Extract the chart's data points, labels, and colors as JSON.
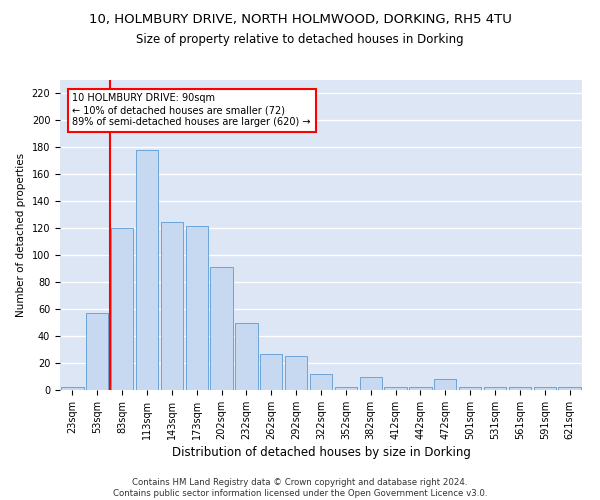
{
  "title1": "10, HOLMBURY DRIVE, NORTH HOLMWOOD, DORKING, RH5 4TU",
  "title2": "Size of property relative to detached houses in Dorking",
  "xlabel": "Distribution of detached houses by size in Dorking",
  "ylabel": "Number of detached properties",
  "categories": [
    "23sqm",
    "53sqm",
    "83sqm",
    "113sqm",
    "143sqm",
    "173sqm",
    "202sqm",
    "232sqm",
    "262sqm",
    "292sqm",
    "322sqm",
    "352sqm",
    "382sqm",
    "412sqm",
    "442sqm",
    "472sqm",
    "501sqm",
    "531sqm",
    "561sqm",
    "591sqm",
    "621sqm"
  ],
  "values": [
    2,
    57,
    120,
    178,
    125,
    122,
    91,
    50,
    27,
    25,
    12,
    2,
    10,
    2,
    2,
    8,
    2,
    2,
    2,
    2,
    2
  ],
  "bar_color": "#c6d9f0",
  "bar_edge_color": "#5b9bd5",
  "background_color": "#dce6f5",
  "grid_color": "#ffffff",
  "annotation_text": "10 HOLMBURY DRIVE: 90sqm\n← 10% of detached houses are smaller (72)\n89% of semi-detached houses are larger (620) →",
  "annotation_box_color": "white",
  "annotation_box_edge": "red",
  "vline_color": "red",
  "vline_x_index": 2,
  "ylim": [
    0,
    230
  ],
  "yticks": [
    0,
    20,
    40,
    60,
    80,
    100,
    120,
    140,
    160,
    180,
    200,
    220
  ],
  "footnote": "Contains HM Land Registry data © Crown copyright and database right 2024.\nContains public sector information licensed under the Open Government Licence v3.0.",
  "title_fontsize": 9.5,
  "subtitle_fontsize": 8.5,
  "xlabel_fontsize": 8.5,
  "ylabel_fontsize": 7.5,
  "tick_fontsize": 7,
  "annot_fontsize": 7,
  "footnote_fontsize": 6.2
}
